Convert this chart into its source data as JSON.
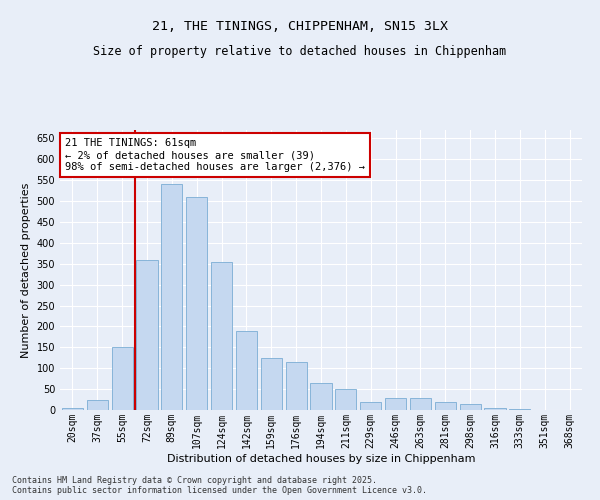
{
  "title_line1": "21, THE TININGS, CHIPPENHAM, SN15 3LX",
  "title_line2": "Size of property relative to detached houses in Chippenham",
  "xlabel": "Distribution of detached houses by size in Chippenham",
  "ylabel": "Number of detached properties",
  "categories": [
    "20sqm",
    "37sqm",
    "55sqm",
    "72sqm",
    "89sqm",
    "107sqm",
    "124sqm",
    "142sqm",
    "159sqm",
    "176sqm",
    "194sqm",
    "211sqm",
    "229sqm",
    "246sqm",
    "263sqm",
    "281sqm",
    "298sqm",
    "316sqm",
    "333sqm",
    "351sqm",
    "368sqm"
  ],
  "values": [
    5,
    25,
    150,
    358,
    540,
    510,
    355,
    190,
    125,
    115,
    65,
    50,
    20,
    28,
    28,
    18,
    15,
    5,
    2,
    1,
    1
  ],
  "bar_color": "#c5d8f0",
  "bar_edge_color": "#7aadd4",
  "red_line_x": 2.5,
  "annotation_text": "21 THE TININGS: 61sqm\n← 2% of detached houses are smaller (39)\n98% of semi-detached houses are larger (2,376) →",
  "annotation_box_color": "#ffffff",
  "annotation_box_edge_color": "#cc0000",
  "ylim": [
    0,
    670
  ],
  "yticks": [
    0,
    50,
    100,
    150,
    200,
    250,
    300,
    350,
    400,
    450,
    500,
    550,
    600,
    650
  ],
  "background_color": "#e8eef8",
  "plot_bg_color": "#e8eef8",
  "footer_text": "Contains HM Land Registry data © Crown copyright and database right 2025.\nContains public sector information licensed under the Open Government Licence v3.0.",
  "title_fontsize": 9.5,
  "subtitle_fontsize": 8.5,
  "axis_label_fontsize": 8,
  "tick_fontsize": 7,
  "annotation_fontsize": 7.5,
  "footer_fontsize": 6
}
